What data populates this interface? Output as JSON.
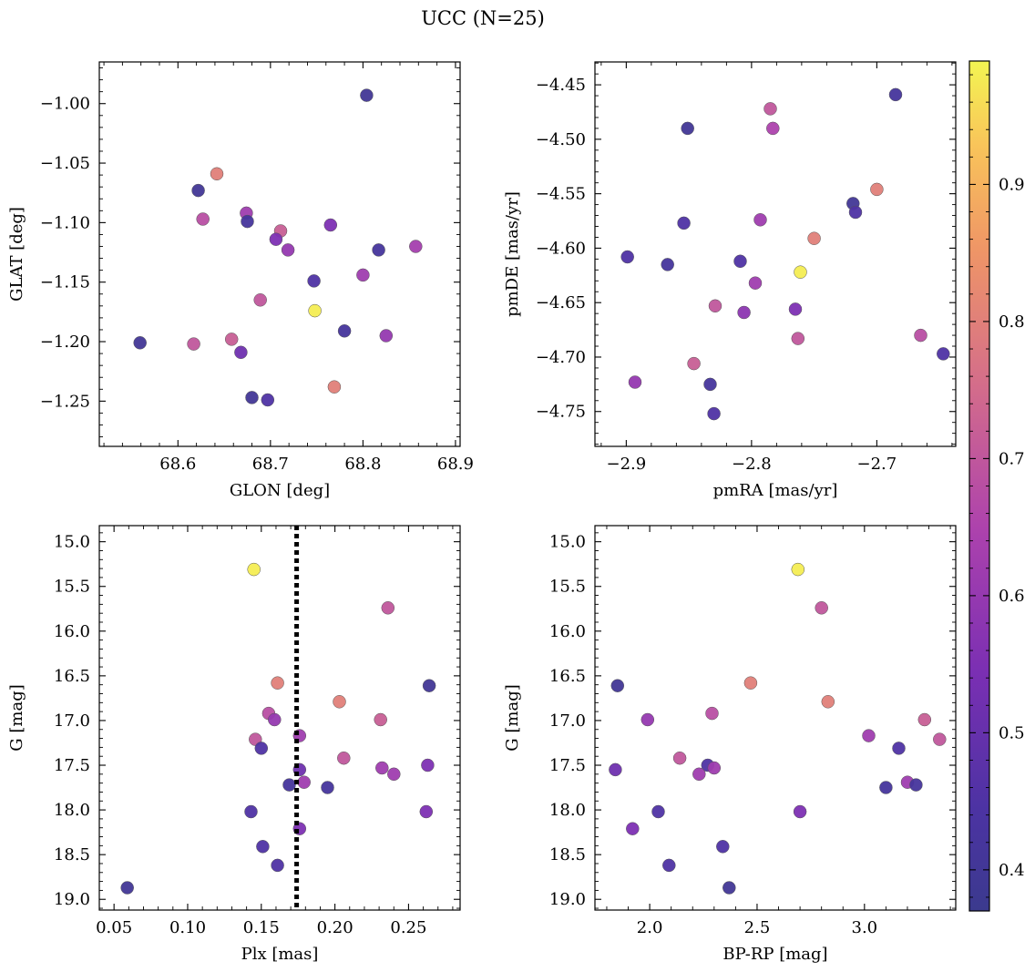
{
  "figure": {
    "title": "UCC (N=25)"
  },
  "chart_data": [
    {
      "type": "scatter",
      "xlabel": "GLON [deg]",
      "ylabel": "GLAT [deg]",
      "xlim": [
        68.515,
        68.905
      ],
      "ylim": [
        -1.288,
        -0.965
      ],
      "y_inverted": false,
      "xticks": [
        68.6,
        68.7,
        68.8,
        68.9
      ],
      "yticks": [
        -1.25,
        -1.2,
        -1.15,
        -1.1,
        -1.05,
        -1.0
      ],
      "xtick_labels": [
        "68.6",
        "68.7",
        "68.8",
        "68.9"
      ],
      "ytick_labels": [
        "−1.25",
        "−1.20",
        "−1.15",
        "−1.10",
        "−1.05",
        "−1.00"
      ],
      "points": [
        {
          "x": 68.804,
          "y": -0.993,
          "c": 0.4
        },
        {
          "x": 68.642,
          "y": -1.059,
          "c": 0.8
        },
        {
          "x": 68.622,
          "y": -1.073,
          "c": 0.4
        },
        {
          "x": 68.627,
          "y": -1.097,
          "c": 0.68
        },
        {
          "x": 68.674,
          "y": -1.092,
          "c": 0.62
        },
        {
          "x": 68.675,
          "y": -1.099,
          "c": 0.42
        },
        {
          "x": 68.711,
          "y": -1.107,
          "c": 0.72
        },
        {
          "x": 68.706,
          "y": -1.114,
          "c": 0.55
        },
        {
          "x": 68.719,
          "y": -1.123,
          "c": 0.6
        },
        {
          "x": 68.765,
          "y": -1.102,
          "c": 0.55
        },
        {
          "x": 68.817,
          "y": -1.123,
          "c": 0.42
        },
        {
          "x": 68.857,
          "y": -1.12,
          "c": 0.63
        },
        {
          "x": 68.8,
          "y": -1.144,
          "c": 0.62
        },
        {
          "x": 68.747,
          "y": -1.149,
          "c": 0.45
        },
        {
          "x": 68.689,
          "y": -1.165,
          "c": 0.7
        },
        {
          "x": 68.748,
          "y": -1.174,
          "c": 0.98
        },
        {
          "x": 68.78,
          "y": -1.191,
          "c": 0.42
        },
        {
          "x": 68.825,
          "y": -1.195,
          "c": 0.6
        },
        {
          "x": 68.559,
          "y": -1.201,
          "c": 0.4
        },
        {
          "x": 68.617,
          "y": -1.202,
          "c": 0.7
        },
        {
          "x": 68.658,
          "y": -1.198,
          "c": 0.72
        },
        {
          "x": 68.668,
          "y": -1.209,
          "c": 0.52
        },
        {
          "x": 68.68,
          "y": -1.247,
          "c": 0.4
        },
        {
          "x": 68.697,
          "y": -1.249,
          "c": 0.45
        },
        {
          "x": 68.769,
          "y": -1.238,
          "c": 0.8
        }
      ]
    },
    {
      "type": "scatter",
      "xlabel": "pmRA [mas/yr]",
      "ylabel": "pmDE [mas/yr]",
      "xlim": [
        -2.925,
        -2.637
      ],
      "ylim": [
        -4.782,
        -4.429
      ],
      "y_inverted": false,
      "xticks": [
        -2.9,
        -2.8,
        -2.7
      ],
      "yticks": [
        -4.75,
        -4.7,
        -4.65,
        -4.6,
        -4.55,
        -4.5,
        -4.45
      ],
      "xtick_labels": [
        "−2.9",
        "−2.8",
        "−2.7"
      ],
      "ytick_labels": [
        "−4.75",
        "−4.70",
        "−4.65",
        "−4.60",
        "−4.55",
        "−4.50",
        "−4.45"
      ],
      "points": [
        {
          "x": -2.685,
          "y": -4.459,
          "c": 0.42
        },
        {
          "x": -2.785,
          "y": -4.472,
          "c": 0.7
        },
        {
          "x": -2.783,
          "y": -4.49,
          "c": 0.65
        },
        {
          "x": -2.851,
          "y": -4.49,
          "c": 0.4
        },
        {
          "x": -2.7,
          "y": -4.546,
          "c": 0.8
        },
        {
          "x": -2.719,
          "y": -4.559,
          "c": 0.4
        },
        {
          "x": -2.717,
          "y": -4.567,
          "c": 0.45
        },
        {
          "x": -2.793,
          "y": -4.574,
          "c": 0.62
        },
        {
          "x": -2.854,
          "y": -4.577,
          "c": 0.45
        },
        {
          "x": -2.75,
          "y": -4.591,
          "c": 0.8
        },
        {
          "x": -2.899,
          "y": -4.608,
          "c": 0.45
        },
        {
          "x": -2.867,
          "y": -4.615,
          "c": 0.42
        },
        {
          "x": -2.809,
          "y": -4.612,
          "c": 0.45
        },
        {
          "x": -2.761,
          "y": -4.622,
          "c": 0.98
        },
        {
          "x": -2.797,
          "y": -4.632,
          "c": 0.62
        },
        {
          "x": -2.829,
          "y": -4.653,
          "c": 0.7
        },
        {
          "x": -2.765,
          "y": -4.656,
          "c": 0.55
        },
        {
          "x": -2.806,
          "y": -4.659,
          "c": 0.58
        },
        {
          "x": -2.763,
          "y": -4.683,
          "c": 0.7
        },
        {
          "x": -2.665,
          "y": -4.68,
          "c": 0.68
        },
        {
          "x": -2.647,
          "y": -4.697,
          "c": 0.45
        },
        {
          "x": -2.846,
          "y": -4.706,
          "c": 0.72
        },
        {
          "x": -2.893,
          "y": -4.723,
          "c": 0.6
        },
        {
          "x": -2.833,
          "y": -4.725,
          "c": 0.42
        },
        {
          "x": -2.83,
          "y": -4.752,
          "c": 0.45
        }
      ]
    },
    {
      "type": "scatter",
      "xlabel": "Plx [mas]",
      "ylabel": "G [mag]",
      "xlim": [
        0.04,
        0.285
      ],
      "ylim": [
        19.12,
        14.82
      ],
      "y_inverted": true,
      "xticks": [
        0.05,
        0.1,
        0.15,
        0.2,
        0.25
      ],
      "yticks": [
        15.0,
        15.5,
        16.0,
        16.5,
        17.0,
        17.5,
        18.0,
        18.5,
        19.0
      ],
      "xtick_labels": [
        "0.05",
        "0.10",
        "0.15",
        "0.20",
        "0.25"
      ],
      "ytick_labels": [
        "15.0",
        "15.5",
        "16.0",
        "16.5",
        "17.0",
        "17.5",
        "18.0",
        "18.5",
        "19.0"
      ],
      "vline": {
        "x": 0.174,
        "style": "dotted"
      },
      "points": [
        {
          "x": 0.145,
          "y": 15.31,
          "c": 0.98
        },
        {
          "x": 0.236,
          "y": 15.74,
          "c": 0.7
        },
        {
          "x": 0.161,
          "y": 16.58,
          "c": 0.8
        },
        {
          "x": 0.264,
          "y": 16.61,
          "c": 0.4
        },
        {
          "x": 0.203,
          "y": 16.79,
          "c": 0.8
        },
        {
          "x": 0.155,
          "y": 16.92,
          "c": 0.68
        },
        {
          "x": 0.159,
          "y": 16.99,
          "c": 0.6
        },
        {
          "x": 0.231,
          "y": 16.99,
          "c": 0.72
        },
        {
          "x": 0.176,
          "y": 17.17,
          "c": 0.62
        },
        {
          "x": 0.146,
          "y": 17.21,
          "c": 0.7
        },
        {
          "x": 0.15,
          "y": 17.31,
          "c": 0.45
        },
        {
          "x": 0.206,
          "y": 17.42,
          "c": 0.7
        },
        {
          "x": 0.232,
          "y": 17.53,
          "c": 0.62
        },
        {
          "x": 0.263,
          "y": 17.5,
          "c": 0.55
        },
        {
          "x": 0.24,
          "y": 17.6,
          "c": 0.62
        },
        {
          "x": 0.176,
          "y": 17.55,
          "c": 0.52
        },
        {
          "x": 0.169,
          "y": 17.72,
          "c": 0.42
        },
        {
          "x": 0.179,
          "y": 17.69,
          "c": 0.62
        },
        {
          "x": 0.195,
          "y": 17.75,
          "c": 0.42
        },
        {
          "x": 0.143,
          "y": 18.02,
          "c": 0.45
        },
        {
          "x": 0.262,
          "y": 18.02,
          "c": 0.55
        },
        {
          "x": 0.176,
          "y": 18.21,
          "c": 0.55
        },
        {
          "x": 0.151,
          "y": 18.41,
          "c": 0.45
        },
        {
          "x": 0.161,
          "y": 18.62,
          "c": 0.45
        },
        {
          "x": 0.059,
          "y": 18.87,
          "c": 0.4
        }
      ]
    },
    {
      "type": "scatter",
      "xlabel": "BP-RP [mag]",
      "ylabel": "G [mag]",
      "xlim": [
        1.745,
        3.425
      ],
      "ylim": [
        19.12,
        14.82
      ],
      "y_inverted": true,
      "xticks": [
        2.0,
        2.5,
        3.0
      ],
      "yticks": [
        15.0,
        15.5,
        16.0,
        16.5,
        17.0,
        17.5,
        18.0,
        18.5,
        19.0
      ],
      "xtick_labels": [
        "2.0",
        "2.5",
        "3.0"
      ],
      "ytick_labels": [
        "15.0",
        "15.5",
        "16.0",
        "16.5",
        "17.0",
        "17.5",
        "18.0",
        "18.5",
        "19.0"
      ],
      "points": [
        {
          "x": 2.69,
          "y": 15.31,
          "c": 0.98
        },
        {
          "x": 2.8,
          "y": 15.74,
          "c": 0.7
        },
        {
          "x": 1.85,
          "y": 16.61,
          "c": 0.4
        },
        {
          "x": 2.47,
          "y": 16.58,
          "c": 0.8
        },
        {
          "x": 2.83,
          "y": 16.79,
          "c": 0.8
        },
        {
          "x": 1.99,
          "y": 16.99,
          "c": 0.6
        },
        {
          "x": 2.29,
          "y": 16.92,
          "c": 0.68
        },
        {
          "x": 3.28,
          "y": 16.99,
          "c": 0.72
        },
        {
          "x": 3.02,
          "y": 17.17,
          "c": 0.62
        },
        {
          "x": 3.35,
          "y": 17.21,
          "c": 0.7
        },
        {
          "x": 3.16,
          "y": 17.31,
          "c": 0.45
        },
        {
          "x": 2.14,
          "y": 17.42,
          "c": 0.7
        },
        {
          "x": 2.27,
          "y": 17.5,
          "c": 0.45
        },
        {
          "x": 2.3,
          "y": 17.53,
          "c": 0.62
        },
        {
          "x": 1.84,
          "y": 17.55,
          "c": 0.52
        },
        {
          "x": 2.23,
          "y": 17.6,
          "c": 0.62
        },
        {
          "x": 3.2,
          "y": 17.69,
          "c": 0.62
        },
        {
          "x": 3.24,
          "y": 17.72,
          "c": 0.42
        },
        {
          "x": 3.1,
          "y": 17.75,
          "c": 0.42
        },
        {
          "x": 2.04,
          "y": 18.02,
          "c": 0.45
        },
        {
          "x": 2.7,
          "y": 18.02,
          "c": 0.55
        },
        {
          "x": 1.92,
          "y": 18.21,
          "c": 0.55
        },
        {
          "x": 2.34,
          "y": 18.41,
          "c": 0.45
        },
        {
          "x": 2.09,
          "y": 18.62,
          "c": 0.45
        },
        {
          "x": 2.37,
          "y": 18.87,
          "c": 0.4
        }
      ]
    }
  ],
  "colorbar": {
    "colormap": "plasma",
    "range": [
      0.37,
      0.99
    ],
    "ticks": [
      0.4,
      0.5,
      0.6,
      0.7,
      0.8,
      0.9
    ],
    "tick_labels": [
      "0.4",
      "0.5",
      "0.6",
      "0.7",
      "0.8",
      "0.9"
    ]
  }
}
